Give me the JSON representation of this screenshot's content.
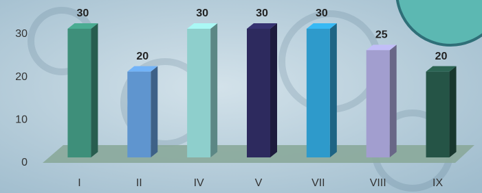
{
  "chart_data": {
    "type": "bar",
    "categories": [
      "I",
      "II",
      "IV",
      "V",
      "VII",
      "VIII",
      "IX"
    ],
    "values": [
      30,
      20,
      30,
      30,
      30,
      25,
      20
    ],
    "colors": [
      "#3e8f7a",
      "#5f95cf",
      "#8ecfcc",
      "#2d2a5e",
      "#2e9acb",
      "#a29ecf",
      "#255446"
    ],
    "ylim": [
      0,
      30
    ],
    "yticks": [
      0,
      10,
      20,
      30
    ],
    "grid": false
  }
}
